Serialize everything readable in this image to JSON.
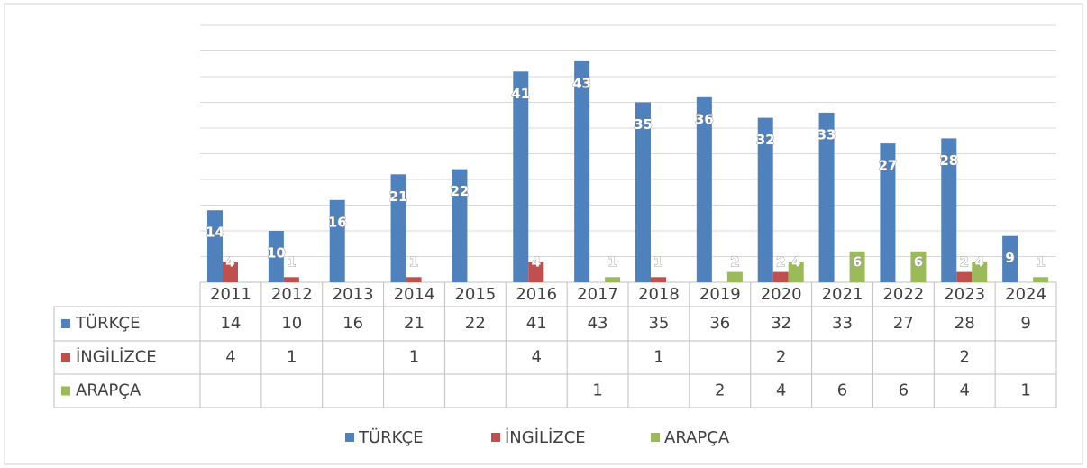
{
  "chart_data": {
    "type": "bar",
    "categories": [
      "2011",
      "2012",
      "2013",
      "2014",
      "2015",
      "2016",
      "2017",
      "2018",
      "2019",
      "2020",
      "2021",
      "2022",
      "2023",
      "2024"
    ],
    "series": [
      {
        "name": "TÜRKÇE",
        "color": "#4f81bd",
        "values": [
          14,
          10,
          16,
          21,
          22,
          41,
          43,
          35,
          36,
          32,
          33,
          27,
          28,
          9
        ]
      },
      {
        "name": "İNGİLİZCE",
        "color": "#c0504d",
        "values": [
          4,
          1,
          null,
          1,
          null,
          4,
          null,
          1,
          null,
          2,
          null,
          null,
          2,
          null
        ]
      },
      {
        "name": "ARAPÇA",
        "color": "#9bbb59",
        "values": [
          null,
          null,
          null,
          null,
          null,
          null,
          1,
          null,
          2,
          4,
          6,
          6,
          4,
          1
        ]
      }
    ],
    "ylim": [
      0,
      50
    ],
    "yticks": [
      0,
      5,
      10,
      15,
      20,
      25,
      30,
      35,
      40,
      45,
      50
    ],
    "grid": true,
    "legend": "bottom"
  }
}
